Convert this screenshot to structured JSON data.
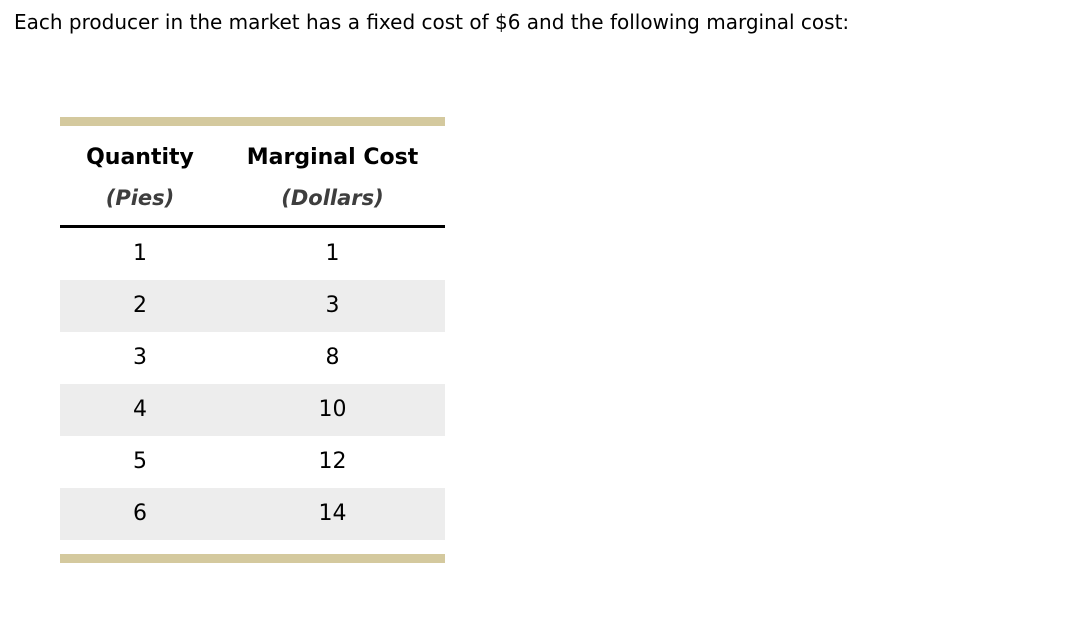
{
  "question": {
    "text": "Each producer in the market has a fixed cost of $6 and the following marginal cost:"
  },
  "table": {
    "columns": [
      {
        "label": "Quantity",
        "unit": "(Pies)"
      },
      {
        "label": "Marginal Cost",
        "unit": "(Dollars)"
      }
    ],
    "rows": [
      {
        "quantity": "1",
        "marginal_cost": "1"
      },
      {
        "quantity": "2",
        "marginal_cost": "3"
      },
      {
        "quantity": "3",
        "marginal_cost": "8"
      },
      {
        "quantity": "4",
        "marginal_cost": "10"
      },
      {
        "quantity": "5",
        "marginal_cost": "12"
      },
      {
        "quantity": "6",
        "marginal_cost": "14"
      }
    ]
  },
  "colors": {
    "accent": "#d4c99e",
    "row_alt": "#ededed",
    "unit_text": "#3e3e3e"
  }
}
